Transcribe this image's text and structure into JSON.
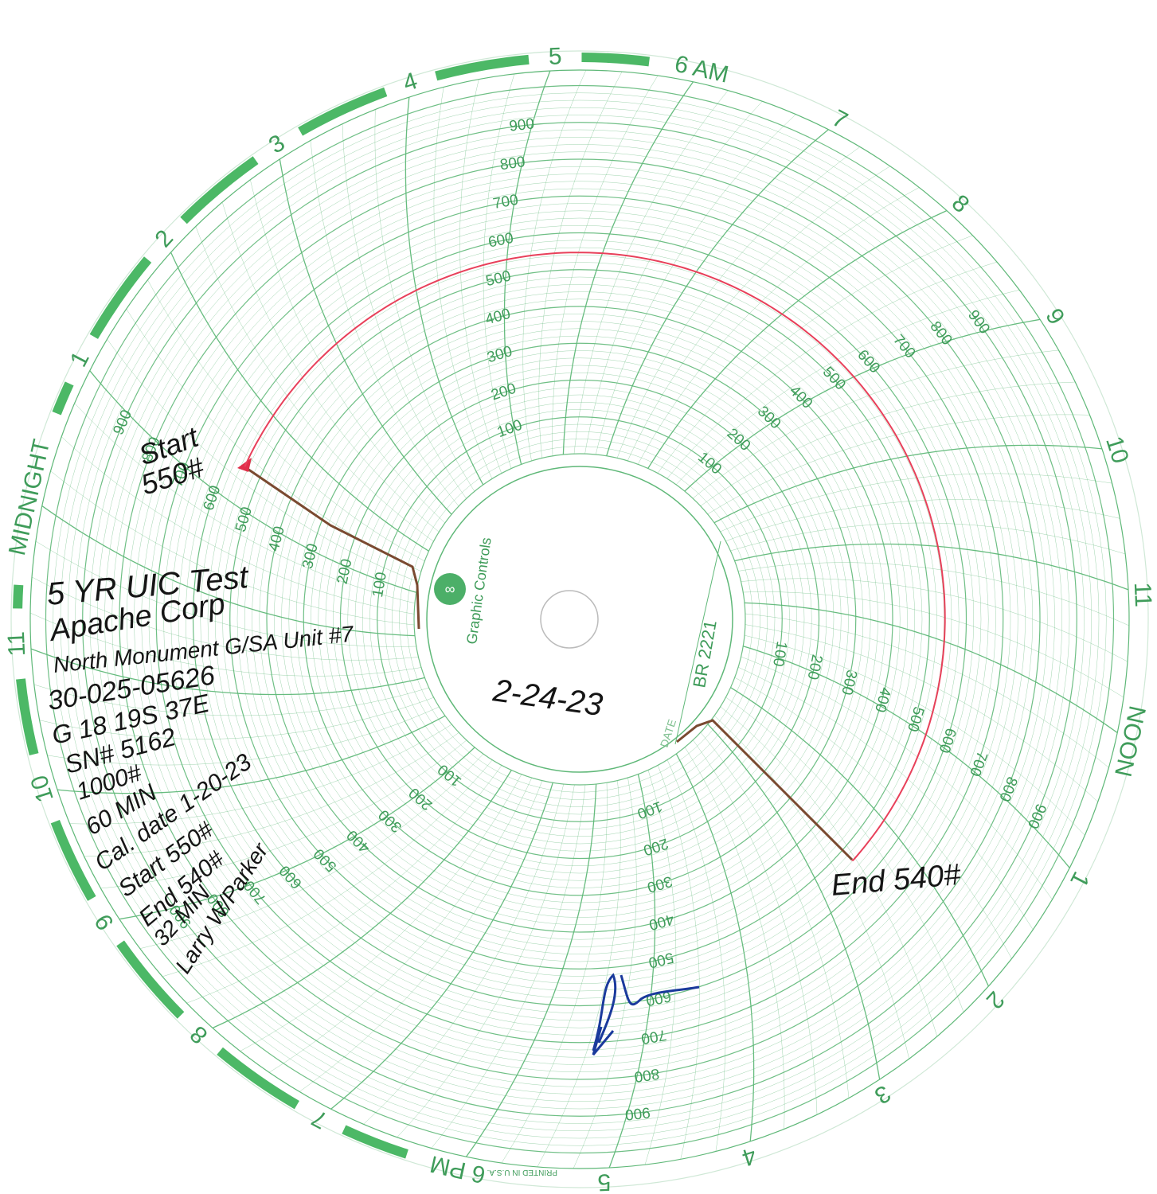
{
  "hour_labels": [
    "6 AM",
    "7",
    "8",
    "9",
    "10",
    "11",
    "NOON",
    "1",
    "2",
    "3",
    "4",
    "5",
    "6 PM",
    "7",
    "8",
    "9",
    "10",
    "11",
    "MIDNIGHT",
    "1",
    "2",
    "3",
    "4",
    "5"
  ],
  "pressure_scale": [
    100,
    200,
    300,
    400,
    500,
    600,
    700,
    800,
    900
  ],
  "brand": "Graphic Controls",
  "chart_number": "BR 2221",
  "date_label": "DATE",
  "date": "2-24-23",
  "printed": "PRINTED IN U.S.A.",
  "notes": [
    "5 YR UIC Test",
    "Apache Corp",
    "North Monument G/SA Unit #7",
    "30-025-05626",
    "G 18 19S 37E",
    "SN# 5162",
    "1000#",
    "60 MIN",
    "Cal. date 1-20-23",
    "Start 550#",
    "End 540#",
    "32 MIN",
    "Larry W/Parker"
  ],
  "trace": {
    "start_label": [
      "Start",
      "550#"
    ],
    "end_label": "End 540#",
    "start_pressure": 550,
    "end_pressure": 540
  }
}
